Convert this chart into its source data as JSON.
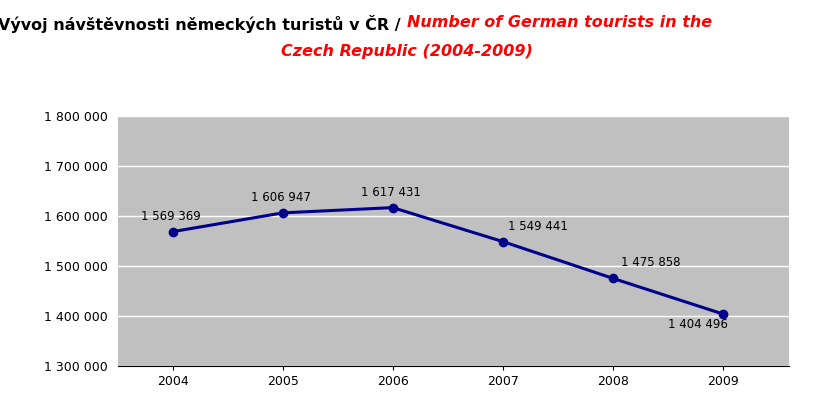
{
  "years": [
    2004,
    2005,
    2006,
    2007,
    2008,
    2009
  ],
  "values": [
    1569369,
    1606947,
    1617431,
    1549441,
    1475858,
    1404496
  ],
  "labels": [
    "1 569 369",
    "1 606 947",
    "1 617 431",
    "1 549 441",
    "1 475 858",
    "1 404 496"
  ],
  "title_black": "Vývoj návštěvnosti německých turistů v ČR / ",
  "title_red_line1": "Number of German tourists in the",
  "title_red_line2": "Czech Republic (2004-2009)",
  "ylim": [
    1300000,
    1800000
  ],
  "yticks": [
    1300000,
    1400000,
    1500000,
    1600000,
    1700000,
    1800000
  ],
  "ytick_labels": [
    "1 300 000",
    "1 400 000",
    "1 500 000",
    "1 600 000",
    "1 700 000",
    "1 800 000"
  ],
  "line_color": "#00008B",
  "marker_color": "#00008B",
  "plot_bg_color": "#C0C0C0",
  "fig_bg_color": "#FFFFFF",
  "grid_color": "#FFFFFF",
  "label_fontsize": 8.5,
  "title_fontsize": 11.5,
  "tick_fontsize": 9,
  "line_width": 2.2,
  "marker_size": 6,
  "label_offsets_x": [
    -0.02,
    -0.02,
    -0.02,
    0.05,
    0.08,
    0.05
  ],
  "label_offsets_y": [
    18000,
    18000,
    18000,
    18000,
    18000,
    -35000
  ],
  "label_ha": [
    "center",
    "center",
    "center",
    "left",
    "left",
    "right"
  ]
}
